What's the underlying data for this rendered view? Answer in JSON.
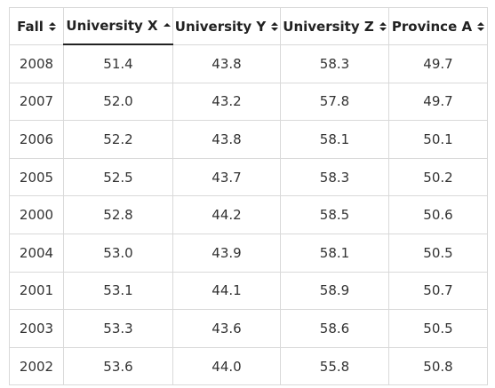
{
  "table": {
    "columns": [
      {
        "label": "Fall",
        "sort": "none"
      },
      {
        "label": "University X",
        "sort": "ascending"
      },
      {
        "label": "University Y",
        "sort": "none"
      },
      {
        "label": "University Z",
        "sort": "none"
      },
      {
        "label": "Province A",
        "sort": "none"
      }
    ],
    "rows": [
      [
        "2008",
        "51.4",
        "43.8",
        "58.3",
        "49.7"
      ],
      [
        "2007",
        "52.0",
        "43.2",
        "57.8",
        "49.7"
      ],
      [
        "2006",
        "52.2",
        "43.8",
        "58.1",
        "50.1"
      ],
      [
        "2005",
        "52.5",
        "43.7",
        "58.3",
        "50.2"
      ],
      [
        "2000",
        "52.8",
        "44.2",
        "58.5",
        "50.6"
      ],
      [
        "2004",
        "53.0",
        "43.9",
        "58.1",
        "50.5"
      ],
      [
        "2001",
        "53.1",
        "44.1",
        "58.9",
        "50.7"
      ],
      [
        "2003",
        "53.3",
        "43.6",
        "58.6",
        "50.5"
      ],
      [
        "2002",
        "53.6",
        "44.0",
        "55.8",
        "50.8"
      ]
    ]
  },
  "colors": {
    "border": "#d9d9d9",
    "text": "#222222",
    "active_underline": "#222222"
  },
  "icons": {
    "sort_unsorted": "up-down-triangles-icon",
    "sort_ascending": "up-triangle-icon"
  }
}
